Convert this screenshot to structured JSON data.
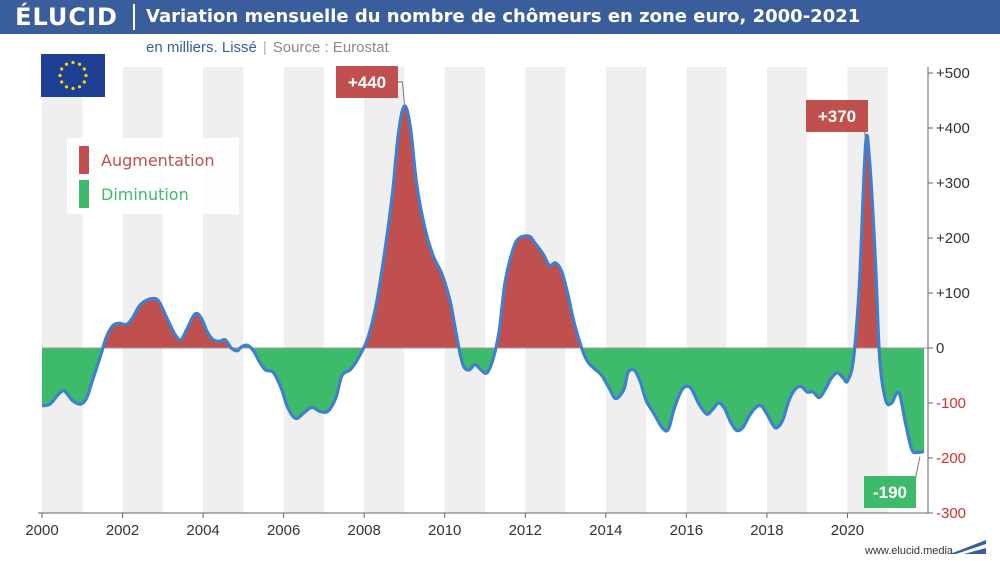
{
  "header": {
    "brand": "ÉLUCID",
    "title": "Variation mensuelle du nombre de chômeurs en zone euro, 2000-2021"
  },
  "subtitle": {
    "unit": "en milliers. Lissé",
    "source": "Source : Eurostat"
  },
  "legend": {
    "increase_label": "Augmentation",
    "decrease_label": "Diminution"
  },
  "footer": {
    "url": "www.elucid.media"
  },
  "colors": {
    "header": "#3a5d9c",
    "increase": "#c0504d",
    "decrease": "#3dba6a",
    "line": "#3d7fd0",
    "negative_tick": "#d0312d"
  },
  "chart_data": {
    "type": "area",
    "title": "Variation mensuelle du nombre de chômeurs en zone euro, 2000-2021",
    "subtitle": "en milliers. Lissé | Source : Eurostat",
    "xlabel": "",
    "ylabel": "",
    "xlim": [
      2000,
      2022
    ],
    "ylim": [
      -300,
      500
    ],
    "x_ticks": [
      "2000",
      "2002",
      "2004",
      "2006",
      "2008",
      "2010",
      "2012",
      "2014",
      "2016",
      "2018",
      "2020"
    ],
    "y_ticks": [
      "+500",
      "+400",
      "+300",
      "+200",
      "+100",
      "0",
      "-100",
      "-200",
      "-300"
    ],
    "y_tick_values": [
      500,
      400,
      300,
      200,
      100,
      0,
      -100,
      -200,
      -300
    ],
    "grid": "alternating vertical bands per year",
    "legend_position": "top-left",
    "series": [
      {
        "name": "",
        "points": [
          [
            2000.0,
            -105
          ],
          [
            2000.2,
            -102
          ],
          [
            2000.4,
            -85
          ],
          [
            2000.55,
            -78
          ],
          [
            2000.75,
            -95
          ],
          [
            2000.95,
            -102
          ],
          [
            2001.1,
            -92
          ],
          [
            2001.25,
            -60
          ],
          [
            2001.45,
            -15
          ],
          [
            2001.6,
            20
          ],
          [
            2001.75,
            40
          ],
          [
            2001.9,
            45
          ],
          [
            2002.1,
            43
          ],
          [
            2002.25,
            55
          ],
          [
            2002.4,
            75
          ],
          [
            2002.55,
            85
          ],
          [
            2002.75,
            90
          ],
          [
            2002.9,
            85
          ],
          [
            2003.1,
            55
          ],
          [
            2003.3,
            25
          ],
          [
            2003.45,
            15
          ],
          [
            2003.6,
            35
          ],
          [
            2003.8,
            62
          ],
          [
            2003.95,
            55
          ],
          [
            2004.1,
            30
          ],
          [
            2004.25,
            15
          ],
          [
            2004.4,
            12
          ],
          [
            2004.55,
            15
          ],
          [
            2004.7,
            0
          ],
          [
            2004.85,
            -5
          ],
          [
            2004.95,
            2
          ],
          [
            2005.1,
            5
          ],
          [
            2005.25,
            -5
          ],
          [
            2005.4,
            -25
          ],
          [
            2005.55,
            -40
          ],
          [
            2005.75,
            -45
          ],
          [
            2005.95,
            -75
          ],
          [
            2006.1,
            -108
          ],
          [
            2006.3,
            -128
          ],
          [
            2006.5,
            -118
          ],
          [
            2006.7,
            -108
          ],
          [
            2006.9,
            -115
          ],
          [
            2007.1,
            -115
          ],
          [
            2007.3,
            -90
          ],
          [
            2007.45,
            -50
          ],
          [
            2007.65,
            -40
          ],
          [
            2007.8,
            -25
          ],
          [
            2007.95,
            -5
          ],
          [
            2008.1,
            20
          ],
          [
            2008.3,
            80
          ],
          [
            2008.5,
            170
          ],
          [
            2008.7,
            280
          ],
          [
            2008.85,
            390
          ],
          [
            2009.0,
            440
          ],
          [
            2009.15,
            400
          ],
          [
            2009.3,
            300
          ],
          [
            2009.5,
            220
          ],
          [
            2009.7,
            170
          ],
          [
            2009.9,
            140
          ],
          [
            2010.0,
            120
          ],
          [
            2010.15,
            80
          ],
          [
            2010.3,
            20
          ],
          [
            2010.45,
            -30
          ],
          [
            2010.6,
            -40
          ],
          [
            2010.75,
            -30
          ],
          [
            2010.9,
            -40
          ],
          [
            2011.05,
            -45
          ],
          [
            2011.2,
            -20
          ],
          [
            2011.35,
            30
          ],
          [
            2011.5,
            120
          ],
          [
            2011.7,
            180
          ],
          [
            2011.85,
            200
          ],
          [
            2012.1,
            203
          ],
          [
            2012.25,
            190
          ],
          [
            2012.45,
            170
          ],
          [
            2012.6,
            150
          ],
          [
            2012.75,
            155
          ],
          [
            2012.9,
            140
          ],
          [
            2013.05,
            100
          ],
          [
            2013.2,
            50
          ],
          [
            2013.4,
            0
          ],
          [
            2013.55,
            -25
          ],
          [
            2013.75,
            -40
          ],
          [
            2013.9,
            -50
          ],
          [
            2014.1,
            -75
          ],
          [
            2014.25,
            -92
          ],
          [
            2014.45,
            -75
          ],
          [
            2014.55,
            -45
          ],
          [
            2014.7,
            -40
          ],
          [
            2014.85,
            -60
          ],
          [
            2015.0,
            -95
          ],
          [
            2015.2,
            -120
          ],
          [
            2015.4,
            -145
          ],
          [
            2015.55,
            -148
          ],
          [
            2015.7,
            -110
          ],
          [
            2015.9,
            -75
          ],
          [
            2016.1,
            -72
          ],
          [
            2016.3,
            -100
          ],
          [
            2016.5,
            -120
          ],
          [
            2016.65,
            -112
          ],
          [
            2016.8,
            -100
          ],
          [
            2016.95,
            -110
          ],
          [
            2017.1,
            -135
          ],
          [
            2017.25,
            -150
          ],
          [
            2017.4,
            -145
          ],
          [
            2017.55,
            -125
          ],
          [
            2017.7,
            -110
          ],
          [
            2017.85,
            -105
          ],
          [
            2018.0,
            -120
          ],
          [
            2018.15,
            -140
          ],
          [
            2018.25,
            -145
          ],
          [
            2018.4,
            -130
          ],
          [
            2018.55,
            -95
          ],
          [
            2018.7,
            -75
          ],
          [
            2018.85,
            -70
          ],
          [
            2019.0,
            -80
          ],
          [
            2019.15,
            -80
          ],
          [
            2019.3,
            -90
          ],
          [
            2019.45,
            -75
          ],
          [
            2019.6,
            -55
          ],
          [
            2019.75,
            -45
          ],
          [
            2019.9,
            -55
          ],
          [
            2020.0,
            -60
          ],
          [
            2020.15,
            -20
          ],
          [
            2020.3,
            120
          ],
          [
            2020.45,
            370
          ],
          [
            2020.55,
            340
          ],
          [
            2020.7,
            150
          ],
          [
            2020.8,
            -20
          ],
          [
            2020.95,
            -95
          ],
          [
            2021.1,
            -100
          ],
          [
            2021.2,
            -85
          ],
          [
            2021.3,
            -85
          ],
          [
            2021.45,
            -140
          ],
          [
            2021.6,
            -185
          ],
          [
            2021.75,
            -190
          ],
          [
            2021.9,
            -188
          ]
        ]
      }
    ],
    "annotations": [
      {
        "label": "+440",
        "x": 2009.0,
        "y": 440,
        "color": "increase"
      },
      {
        "label": "+370",
        "x": 2020.45,
        "y": 370,
        "color": "increase"
      },
      {
        "label": "-190",
        "x": 2021.8,
        "y": -190,
        "color": "decrease"
      }
    ]
  }
}
